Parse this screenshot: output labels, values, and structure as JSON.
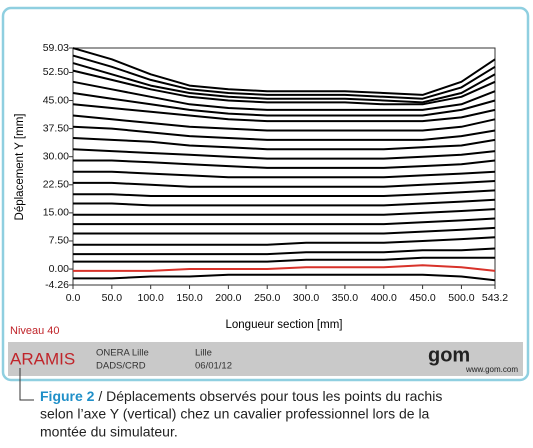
{
  "chart_data": {
    "type": "line",
    "x_label": "Longueur section [mm]",
    "y_label": "Déplacement Y [mm]",
    "x": [
      0,
      50,
      100,
      150,
      200,
      250,
      300,
      350,
      400,
      450,
      500,
      543.2
    ],
    "xlim": [
      0,
      543.2
    ],
    "xticks": [
      {
        "value": 0,
        "label": "0.0"
      },
      {
        "value": 50,
        "label": "50.0"
      },
      {
        "value": 100,
        "label": "100.0"
      },
      {
        "value": 150,
        "label": "150.0"
      },
      {
        "value": 200,
        "label": "200.0"
      },
      {
        "value": 250,
        "label": "250.0"
      },
      {
        "value": 300,
        "label": "300.0"
      },
      {
        "value": 350,
        "label": "350.0"
      },
      {
        "value": 400,
        "label": "400.0"
      },
      {
        "value": 450,
        "label": "450.0"
      },
      {
        "value": 500,
        "label": "500.0"
      },
      543.2
    ],
    "ylim": [
      -4.26,
      59.03
    ],
    "yticks": [
      -4.26,
      {
        "value": 0,
        "label": "0.00"
      },
      {
        "value": 7.5,
        "label": "7.50"
      },
      {
        "value": 15,
        "label": "15.00"
      },
      {
        "value": 22.5,
        "label": "22.50"
      },
      {
        "value": 30,
        "label": "30.00"
      },
      {
        "value": 37.5,
        "label": "37.50"
      },
      {
        "value": 45,
        "label": "45.00"
      },
      {
        "value": 52.5,
        "label": "52.50"
      },
      59.03
    ],
    "series": [
      {
        "color": "#000000",
        "values": [
          59,
          56,
          52,
          49,
          48,
          47.5,
          47.5,
          47.5,
          47,
          46.5,
          50,
          56
        ]
      },
      {
        "color": "#000000",
        "values": [
          57,
          54,
          50.5,
          48,
          47,
          46.5,
          46.5,
          46.5,
          46,
          45.5,
          48.5,
          54
        ]
      },
      {
        "color": "#000000",
        "values": [
          55,
          52,
          49,
          47,
          46,
          45.5,
          45.5,
          45.5,
          45,
          44.5,
          47,
          52
        ]
      },
      {
        "color": "#000000",
        "values": [
          53,
          50.5,
          48,
          46,
          45,
          44.5,
          44.5,
          44.5,
          44,
          44,
          46,
          50
        ]
      },
      {
        "color": "#000000",
        "values": [
          50,
          48,
          46,
          44,
          43,
          42.5,
          42.5,
          42.5,
          42.5,
          42.5,
          44,
          47.5
        ]
      },
      {
        "color": "#000000",
        "values": [
          47,
          45.5,
          44,
          42.5,
          41.5,
          41,
          41,
          41,
          41,
          41,
          42.5,
          45
        ]
      },
      {
        "color": "#000000",
        "values": [
          44,
          43,
          42,
          41,
          40,
          39.5,
          39.5,
          39.5,
          39.5,
          39.5,
          40.5,
          42.5
        ]
      },
      {
        "color": "#000000",
        "values": [
          41,
          40,
          39,
          38,
          37.5,
          37,
          37,
          37,
          37,
          37,
          38,
          40
        ]
      },
      {
        "color": "#000000",
        "values": [
          38,
          37.5,
          36.5,
          35.5,
          35,
          34.5,
          34.5,
          34.5,
          34.5,
          34.5,
          35.5,
          37
        ]
      },
      {
        "color": "#000000",
        "values": [
          35,
          34.5,
          34,
          33,
          32.5,
          32,
          32,
          32,
          32,
          32.5,
          33,
          34.5
        ]
      },
      {
        "color": "#000000",
        "values": [
          32,
          31.5,
          31,
          30.5,
          30,
          29.5,
          29.5,
          29.5,
          29.5,
          30,
          30.5,
          31.5
        ]
      },
      {
        "color": "#000000",
        "values": [
          29,
          29,
          28.5,
          28,
          27.5,
          27,
          27,
          27,
          27,
          27.5,
          28,
          29
        ]
      },
      {
        "color": "#000000",
        "values": [
          26,
          26,
          25.5,
          25,
          24.5,
          24.5,
          24.5,
          24.5,
          24.5,
          25,
          25.5,
          26
        ]
      },
      {
        "color": "#000000",
        "values": [
          23,
          23,
          22.5,
          22,
          22,
          22,
          22,
          22,
          22,
          22.5,
          23,
          23.5
        ]
      },
      {
        "color": "#000000",
        "values": [
          20,
          20,
          19.5,
          19.5,
          19.5,
          19.5,
          19.5,
          19.5,
          19.5,
          20,
          20.5,
          21
        ]
      },
      {
        "color": "#000000",
        "values": [
          17.5,
          17.5,
          17,
          17,
          17,
          17,
          17,
          17,
          17,
          17.5,
          18,
          18.5
        ]
      },
      {
        "color": "#000000",
        "values": [
          14.5,
          14.5,
          14.5,
          14.5,
          14.5,
          14.5,
          14.5,
          14.5,
          14.5,
          15,
          15.5,
          16
        ]
      },
      {
        "color": "#000000",
        "values": [
          12,
          12,
          12,
          12,
          12,
          12,
          12,
          12,
          12,
          12.5,
          13,
          13.5
        ]
      },
      {
        "color": "#000000",
        "values": [
          9.5,
          9.5,
          9.5,
          9.5,
          9.5,
          9.5,
          9.5,
          9.5,
          9.5,
          10,
          10.5,
          11
        ]
      },
      {
        "color": "#000000",
        "values": [
          6.5,
          6.5,
          6.5,
          6.5,
          6.5,
          6.5,
          7,
          7,
          7,
          7.5,
          8,
          8.5
        ]
      },
      {
        "color": "#000000",
        "values": [
          4,
          4,
          4,
          4,
          4,
          4,
          4.5,
          4.5,
          4.5,
          5,
          5,
          5.5
        ]
      },
      {
        "color": "#000000",
        "values": [
          2,
          2,
          2,
          2,
          2,
          2,
          2.5,
          2.5,
          2.5,
          3,
          3,
          3
        ]
      },
      {
        "color": "#d8322a",
        "values": [
          -0.5,
          -0.5,
          -0.5,
          0,
          0,
          0,
          0.5,
          0.5,
          0.5,
          1,
          0.5,
          -0.5
        ]
      },
      {
        "color": "#000000",
        "values": [
          -2.5,
          -2.5,
          -2,
          -2,
          -1.5,
          -1.5,
          -1.5,
          -1.5,
          -1.5,
          -1.5,
          -2,
          -3
        ]
      }
    ]
  },
  "level": "Niveau 40",
  "footer": {
    "brand": "ARAMIS",
    "org": "ONERA Lille",
    "dept": "DADS/CRD",
    "place": "Lille",
    "date": "06/01/12",
    "logo": "gom",
    "url": "www.gom.com"
  },
  "caption": {
    "label": "Figure 2",
    "lines": [
      "/ Déplacements observés pour tous les points du rachis",
      "selon l’axe Y (vertical) chez un cavalier professionnel lors de la",
      "montée du simulateur."
    ]
  }
}
